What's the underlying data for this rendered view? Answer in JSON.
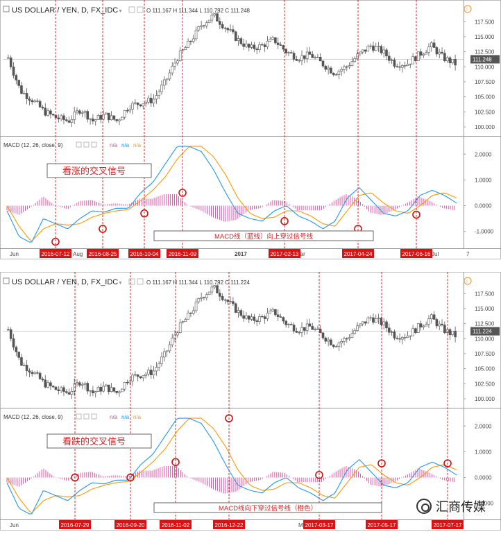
{
  "chart_data": [
    {
      "type": "candlestick",
      "panel": "top",
      "header": {
        "symbol": "US DOLLAR / YEN, D, FX_IDC",
        "ohlc": "O 111.167  H 111.344  L 110.792  C 111.248"
      },
      "price_axis_ticks": [
        "117.500",
        "115.000",
        "112.500",
        "110.000",
        "107.500",
        "105.000",
        "102.500",
        "100.000"
      ],
      "price_ylim": [
        98.5,
        118.8
      ],
      "last_price": "111.248",
      "last_price_value": 111.248,
      "macd_header": "MACD (12, 26, close, 9)",
      "macd_na": [
        "n/a",
        "n/a",
        "n/a"
      ],
      "macd_axis_ticks": [
        "2.0000",
        "1.0000",
        "0.0000",
        "-1.0000"
      ],
      "macd_ylim": [
        -1.6,
        2.6
      ],
      "time_labels": [
        "Jun",
        "Aug",
        "2017",
        "Mar",
        "Jul",
        "7"
      ],
      "annotation_title": "看涨的交叉信号",
      "annotation_note": "MACD线（蓝线）向上穿过信号线",
      "signal_dates": [
        "2016-07-12",
        "2016-08-25",
        "2016-10-04",
        "2016-11-09",
        "2017-02-13",
        "2017-04-24",
        "2017-06-16"
      ],
      "signal_macd_values": [
        -1.4,
        -0.9,
        -0.3,
        0.5,
        -0.6,
        -0.9,
        -0.35
      ],
      "price_series": [
        111.5,
        106,
        104.5,
        102.5,
        101.5,
        101,
        103,
        101,
        102,
        101,
        103.5,
        104,
        104.5,
        107.5,
        111.5,
        114,
        117,
        118.5,
        116.5,
        114.5,
        113,
        113.5,
        114.5,
        112.5,
        111.5,
        112,
        110.5,
        109,
        110,
        112,
        113.5,
        112.5,
        110.5,
        110.5,
        112,
        113.5,
        111.5,
        110.5
      ],
      "macd_series": [
        -0.2,
        -1.2,
        -1.45,
        -0.5,
        -0.7,
        -0.9,
        -0.5,
        -0.2,
        -0.25,
        -0.1,
        -0.1,
        0.5,
        0.9,
        1.6,
        2.3,
        2.3,
        2.1,
        1.4,
        0.5,
        -0.3,
        -0.5,
        -0.6,
        -0.2,
        0.0,
        -0.4,
        -0.6,
        -0.9,
        -0.6,
        0.3,
        0.7,
        0.2,
        -0.3,
        -0.4,
        -0.2,
        0.4,
        0.6,
        0.4,
        0.1
      ],
      "signal_series": [
        0.0,
        -0.8,
        -1.4,
        -0.9,
        -0.7,
        -0.75,
        -0.7,
        -0.45,
        -0.3,
        -0.2,
        -0.15,
        0.2,
        0.6,
        1.1,
        1.8,
        2.3,
        2.3,
        1.9,
        1.2,
        0.3,
        -0.3,
        -0.5,
        -0.45,
        -0.2,
        -0.2,
        -0.4,
        -0.7,
        -0.8,
        -0.2,
        0.4,
        0.5,
        0.1,
        -0.2,
        -0.3,
        0.0,
        0.4,
        0.5,
        0.3
      ]
    },
    {
      "type": "candlestick",
      "panel": "bottom",
      "header": {
        "symbol": "US DOLLAR / YEN, D, FX_IDC",
        "ohlc": "O 111.167  H 111.344  L 110.792  C 111.224"
      },
      "price_axis_ticks": [
        "117.500",
        "115.000",
        "112.500",
        "110.000",
        "107.500",
        "105.000",
        "102.500",
        "100.000"
      ],
      "price_ylim": [
        98.5,
        118.8
      ],
      "last_price": "111.224",
      "last_price_value": 111.224,
      "macd_header": "MACD (12, 26, close, 9)",
      "macd_na": [
        "n/a",
        "n/a",
        "n/a"
      ],
      "macd_axis_ticks": [
        "2.0000",
        "1.0000",
        "0.0000",
        "-1.0000"
      ],
      "macd_ylim": [
        -1.6,
        2.6
      ],
      "time_labels": [
        "Jun",
        "Ma",
        "Jul"
      ],
      "annotation_title": "看跌的交叉信号",
      "annotation_note": "MACD线向下穿过信号线（橙色）",
      "signal_dates": [
        "2016-07-29",
        "2016-09-20",
        "2016-11-02",
        "2016-12-22",
        "2017-03-17",
        "2017-05-17",
        "2017-07-17"
      ],
      "signal_macd_values": [
        0.0,
        0.0,
        0.6,
        2.3,
        0.1,
        0.55,
        0.55
      ],
      "price_series": [
        111.5,
        106,
        104.5,
        102.5,
        101.5,
        101,
        103,
        101,
        102,
        101,
        103.5,
        104,
        104.5,
        107.5,
        111.5,
        114,
        117,
        118.5,
        116.5,
        114.5,
        113,
        113.5,
        114.5,
        112.5,
        111.5,
        112,
        110.5,
        109,
        110,
        112,
        113.5,
        112.5,
        110.5,
        110.5,
        112,
        113.5,
        111.5,
        110.5
      ],
      "macd_series": [
        -0.2,
        -1.2,
        -1.45,
        -0.5,
        -0.7,
        -0.9,
        -0.5,
        -0.2,
        -0.25,
        -0.1,
        -0.1,
        0.5,
        0.9,
        1.6,
        2.3,
        2.3,
        2.1,
        1.4,
        0.5,
        -0.3,
        -0.5,
        -0.6,
        -0.2,
        0.0,
        -0.4,
        -0.6,
        -0.9,
        -0.6,
        0.3,
        0.7,
        0.2,
        -0.3,
        -0.4,
        -0.2,
        0.4,
        0.6,
        0.4,
        0.1
      ],
      "signal_series": [
        0.0,
        -0.8,
        -1.4,
        -0.9,
        -0.7,
        -0.75,
        -0.7,
        -0.45,
        -0.3,
        -0.2,
        -0.15,
        0.2,
        0.6,
        1.1,
        1.8,
        2.3,
        2.3,
        1.9,
        1.2,
        0.3,
        -0.3,
        -0.5,
        -0.45,
        -0.2,
        -0.2,
        -0.4,
        -0.7,
        -0.8,
        -0.2,
        0.4,
        0.5,
        0.1,
        -0.2,
        -0.3,
        0.0,
        0.4,
        0.5,
        0.3
      ]
    }
  ],
  "colors": {
    "macd_line": "#2196f3",
    "signal_line": "#ff9800",
    "histogram": "#e040a0",
    "signal_marker": "#cc1111",
    "date_tag_bg": "#dd1111",
    "price_candle": "#555555",
    "annotation_border": "#cc3333"
  },
  "watermark": "汇商传媒"
}
